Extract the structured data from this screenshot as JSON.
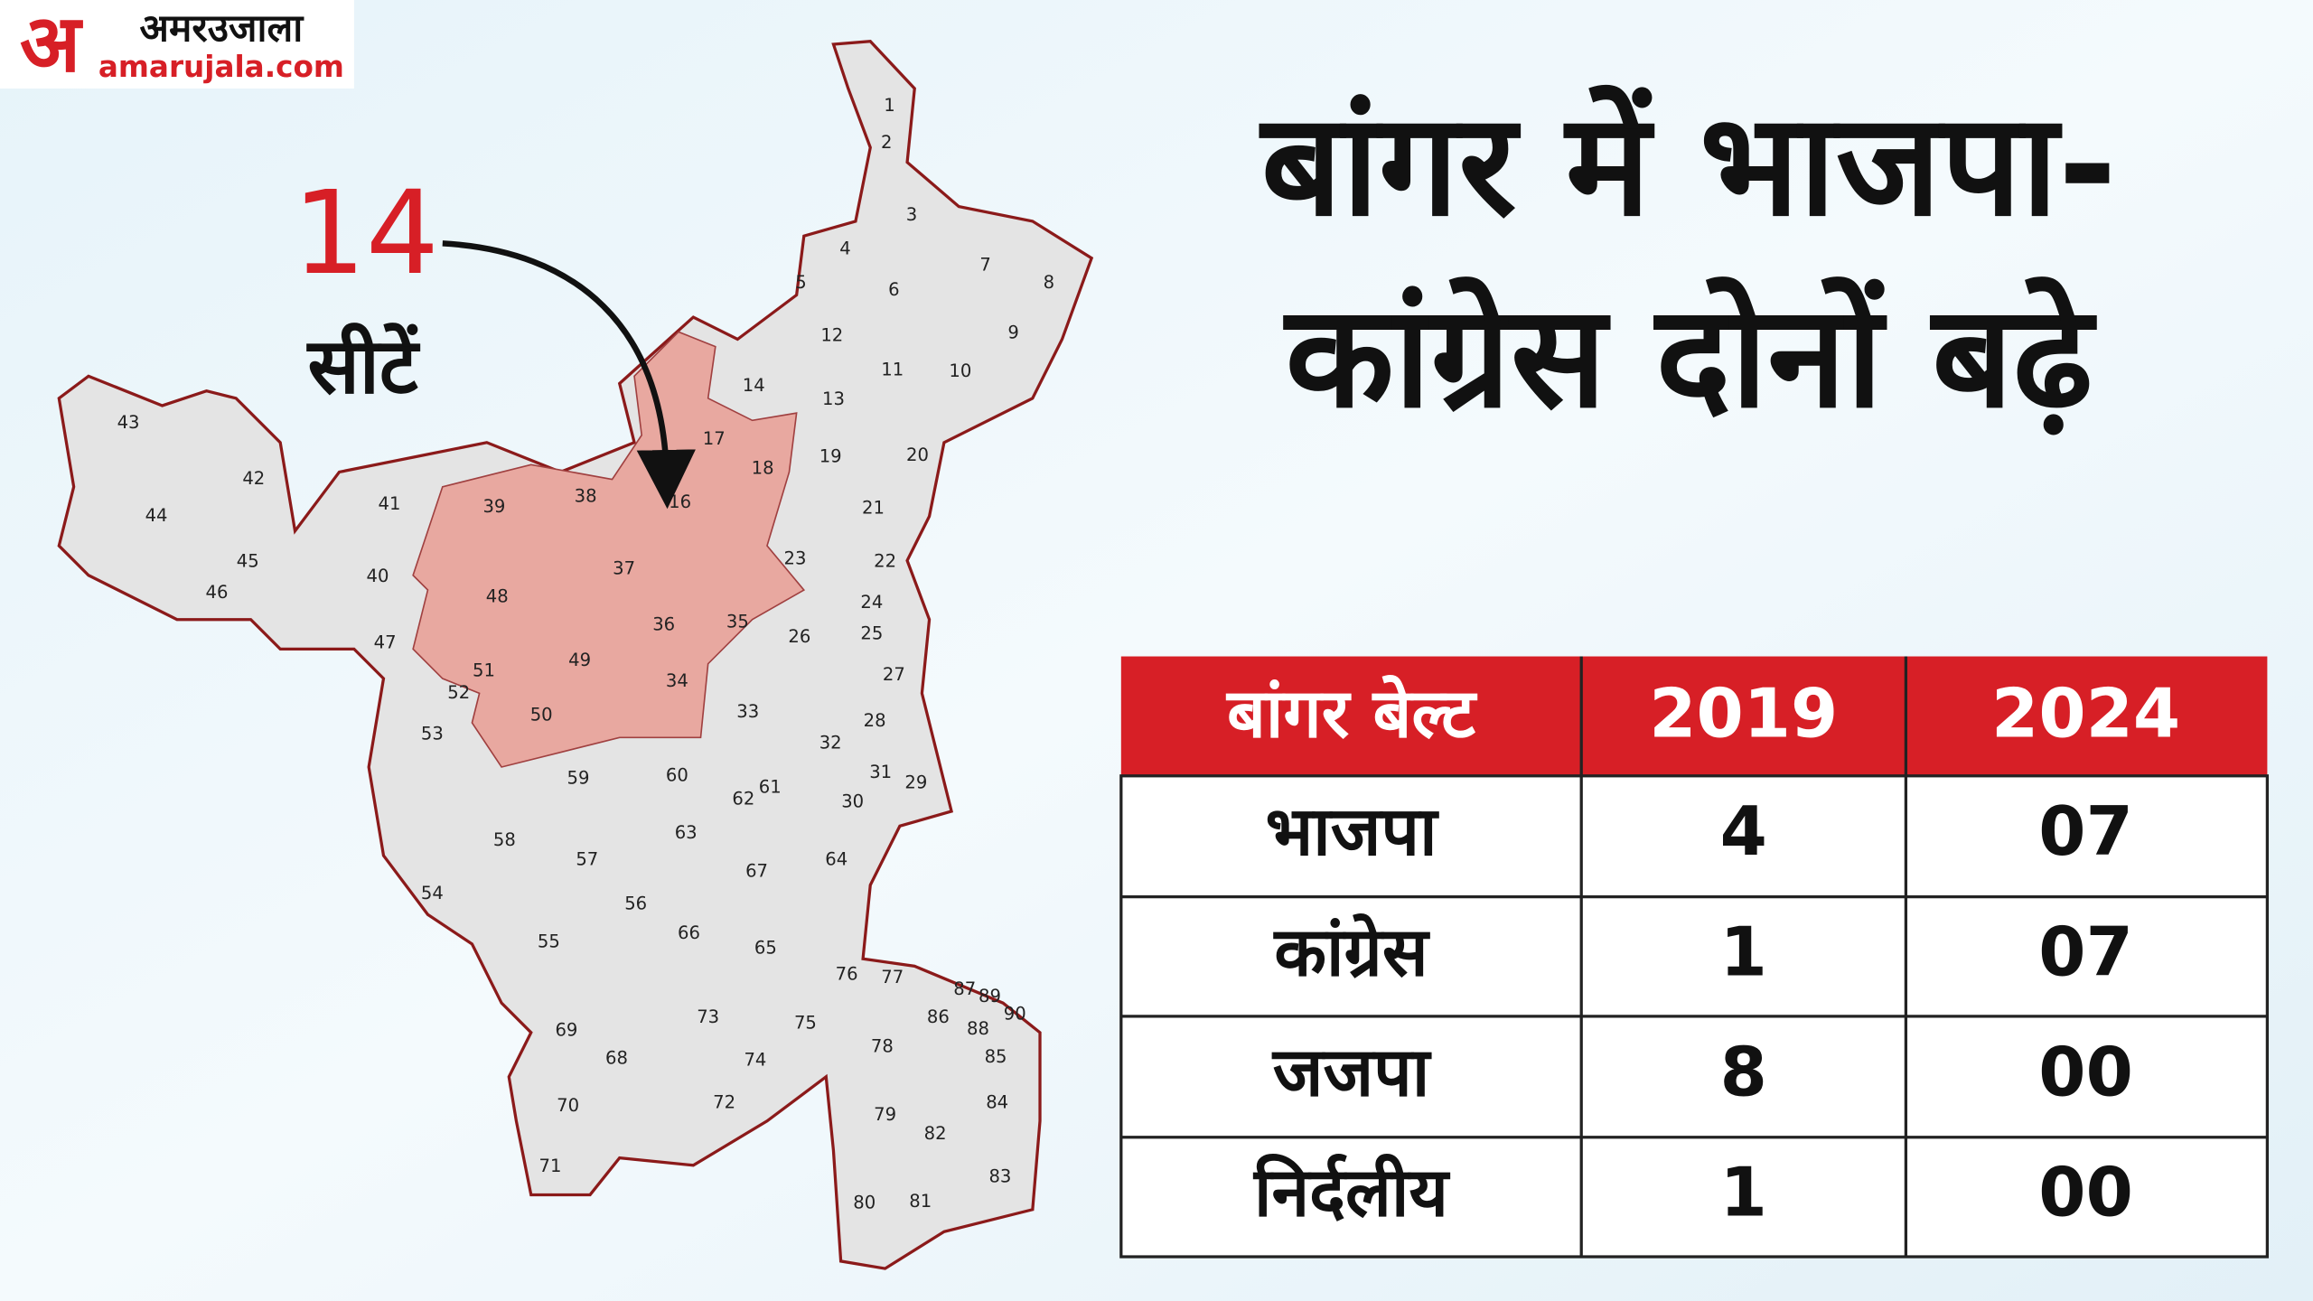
{
  "header": {
    "logo_mark": "अ",
    "logo_name": "अमरउजाला",
    "logo_site": "amarujala.com"
  },
  "title": [
    "बांगर में भाजपा-",
    "कांग्रेस दोनों बढ़े"
  ],
  "callout": {
    "count": 14,
    "label": "सीटें"
  },
  "map": {
    "labels": [
      1,
      2,
      3,
      4,
      5,
      6,
      7,
      8,
      9,
      10,
      11,
      12,
      13,
      14,
      16,
      17,
      18,
      19,
      20,
      21,
      22,
      23,
      24,
      25,
      26,
      27,
      28,
      29,
      30,
      31,
      32,
      33,
      34,
      35,
      36,
      37,
      38,
      39,
      40,
      41,
      42,
      43,
      44,
      45,
      46,
      47,
      48,
      49,
      50,
      51,
      52,
      53,
      54,
      55,
      56,
      57,
      58,
      59,
      60,
      61,
      62,
      63,
      64,
      65,
      66,
      67,
      68,
      69,
      70,
      71,
      72,
      73,
      74,
      75,
      76,
      77,
      78,
      79,
      80,
      81,
      82,
      83,
      84,
      85,
      86,
      87,
      88,
      89,
      90
    ]
  },
  "table": {
    "header": [
      "बांगर बेल्ट",
      "2019",
      "2024"
    ],
    "rows": [
      [
        "भाजपा",
        "4",
        "07"
      ],
      [
        "कांग्रेस",
        "1",
        "07"
      ],
      [
        "जजपा",
        "8",
        "00"
      ],
      [
        "निर्दलीय",
        "1",
        "00"
      ]
    ]
  }
}
